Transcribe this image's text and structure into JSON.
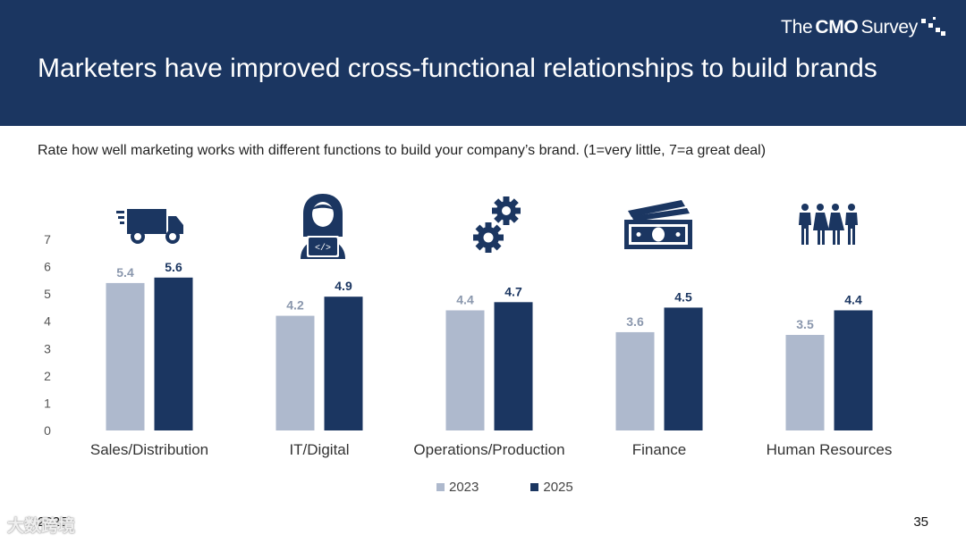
{
  "header": {
    "brand": {
      "the": "The",
      "cmo": "CMO",
      "survey": "Survey"
    },
    "title": "Marketers have improved cross-functional relationships to build brands"
  },
  "subtitle": "Rate how well marketing works with different functions to build your company’s brand. (1=very little, 7=a great deal)",
  "footer": {
    "left": "2025",
    "page": "35",
    "watermark": "大数跨境"
  },
  "colors": {
    "header_bg": "#1b3661",
    "series_2023": "#aeb9cd",
    "series_2025": "#1b3661",
    "icon": "#1b3661"
  },
  "icons": [
    "truck-icon",
    "developer-icon",
    "gears-icon",
    "money-icon",
    "people-icon"
  ],
  "chart_data": {
    "type": "bar",
    "categories": [
      "Sales/Distribution",
      "IT/Digital",
      "Operations/Production",
      "Finance",
      "Human Resources"
    ],
    "series": [
      {
        "name": "2023",
        "values": [
          5.4,
          4.2,
          4.4,
          3.6,
          3.5
        ]
      },
      {
        "name": "2025",
        "values": [
          5.6,
          4.9,
          4.7,
          4.5,
          4.4
        ]
      }
    ],
    "ylim": [
      0,
      7
    ],
    "yticks": [
      "0",
      "1",
      "2",
      "3",
      "4",
      "5",
      "6",
      "7"
    ],
    "grid": false,
    "legend": "bottom"
  }
}
